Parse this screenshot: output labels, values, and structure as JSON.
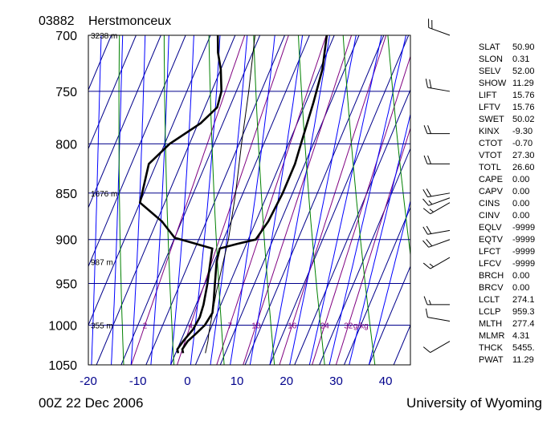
{
  "header": {
    "station_id": "03882",
    "station_name": "Herstmonceux"
  },
  "footer": {
    "time": "00Z 22 Dec 2006",
    "source": "University of Wyoming"
  },
  "chart_data": {
    "type": "line",
    "subtype": "skew-t log-p sounding",
    "x_axis": {
      "range": [
        -20,
        45
      ],
      "ticks": [
        -20,
        -10,
        0,
        10,
        20,
        30,
        40
      ],
      "tick_labels": [
        "-20",
        "-10",
        "0",
        "10",
        "20",
        "30",
        "40"
      ]
    },
    "y_axis": {
      "scale": "log",
      "range": [
        1050,
        700
      ],
      "ticks": [
        700,
        750,
        800,
        850,
        900,
        950,
        1000,
        1050
      ],
      "tick_labels": [
        "700",
        "750",
        "800",
        "850",
        "900",
        "950",
        "1000",
        "1050"
      ]
    },
    "height_labels": [
      {
        "p": 700,
        "text": "3238 m"
      },
      {
        "p": 850,
        "text": "1676 m"
      },
      {
        "p": 925,
        "text": "987 m"
      },
      {
        "p": 1000,
        "text": "355 m"
      }
    ],
    "mixing_ratio_labels": [
      {
        "value": 2,
        "text": "2"
      },
      {
        "value": 4,
        "text": "4"
      },
      {
        "value": 7,
        "text": "7"
      },
      {
        "value": 10,
        "text": "10"
      },
      {
        "value": 16,
        "text": "16"
      },
      {
        "value": 24,
        "text": "24"
      },
      {
        "value": 32,
        "text": "32"
      }
    ],
    "mixing_ratio_unit": "g/kg",
    "mixing_ratio_label_pressure": 1000,
    "series": [
      {
        "role": "temperature",
        "color": "#000000",
        "points": [
          {
            "p": 1035,
            "t": 1.5
          },
          {
            "p": 1030,
            "t": 1.0
          },
          {
            "p": 1020,
            "t": 1.4
          },
          {
            "p": 1010,
            "t": 2.5
          },
          {
            "p": 1000,
            "t": 3.5
          },
          {
            "p": 985,
            "t": 4.0
          },
          {
            "p": 970,
            "t": 3.2
          },
          {
            "p": 950,
            "t": 2.0
          },
          {
            "p": 925,
            "t": 0.5
          },
          {
            "p": 910,
            "t": 0.0
          },
          {
            "p": 905,
            "t": 3.0
          },
          {
            "p": 900,
            "t": 6.5
          },
          {
            "p": 880,
            "t": 7.5
          },
          {
            "p": 850,
            "t": 8.0
          },
          {
            "p": 820,
            "t": 8.0
          },
          {
            "p": 800,
            "t": 7.5
          },
          {
            "p": 760,
            "t": 6.5
          },
          {
            "p": 730,
            "t": 5.5
          },
          {
            "p": 700,
            "t": 3.5
          }
        ]
      },
      {
        "role": "dewpoint",
        "color": "#000000",
        "points": [
          {
            "p": 1035,
            "t": 0.5
          },
          {
            "p": 1030,
            "t": 0.0
          },
          {
            "p": 1020,
            "t": 0.5
          },
          {
            "p": 1005,
            "t": 1.5
          },
          {
            "p": 990,
            "t": 1.8
          },
          {
            "p": 975,
            "t": 1.5
          },
          {
            "p": 950,
            "t": 0.5
          },
          {
            "p": 930,
            "t": -0.5
          },
          {
            "p": 910,
            "t": -1.5
          },
          {
            "p": 905,
            "t": -5.0
          },
          {
            "p": 898,
            "t": -10.0
          },
          {
            "p": 880,
            "t": -14.0
          },
          {
            "p": 860,
            "t": -20.0
          },
          {
            "p": 820,
            "t": -21.5
          },
          {
            "p": 800,
            "t": -19.0
          },
          {
            "p": 780,
            "t": -14.5
          },
          {
            "p": 765,
            "t": -12.5
          },
          {
            "p": 750,
            "t": -13.0
          },
          {
            "p": 730,
            "t": -15.0
          },
          {
            "p": 715,
            "t": -17.0
          },
          {
            "p": 700,
            "t": -18.5
          }
        ]
      },
      {
        "role": "parcel",
        "color": "#000000",
        "points": [
          {
            "p": 1035,
            "t": 6.0
          },
          {
            "p": 1020,
            "t": 5.5
          },
          {
            "p": 1010,
            "t": 5.0
          },
          {
            "p": 960,
            "t": 3.0
          },
          {
            "p": 900,
            "t": 1.0
          },
          {
            "p": 850,
            "t": -1.5
          },
          {
            "p": 800,
            "t": -4.5
          },
          {
            "p": 750,
            "t": -7.5
          },
          {
            "p": 700,
            "t": -11.0
          }
        ]
      }
    ],
    "wind_barbs": [
      {
        "p": 700,
        "dir": 290,
        "kt": 20
      },
      {
        "p": 750,
        "dir": 280,
        "kt": 20
      },
      {
        "p": 790,
        "dir": 270,
        "kt": 20
      },
      {
        "p": 820,
        "dir": 270,
        "kt": 20
      },
      {
        "p": 850,
        "dir": 260,
        "kt": 20
      },
      {
        "p": 855,
        "dir": 250,
        "kt": 15
      },
      {
        "p": 860,
        "dir": 240,
        "kt": 15
      },
      {
        "p": 890,
        "dir": 260,
        "kt": 20
      },
      {
        "p": 900,
        "dir": 250,
        "kt": 20
      },
      {
        "p": 920,
        "dir": 240,
        "kt": 15
      },
      {
        "p": 975,
        "dir": 270,
        "kt": 15
      },
      {
        "p": 995,
        "dir": 280,
        "kt": 10
      },
      {
        "p": 1020,
        "dir": 240,
        "kt": 10
      }
    ],
    "indices": [
      {
        "label": "SLAT",
        "value": "50.90"
      },
      {
        "label": "SLON",
        "value": "0.31"
      },
      {
        "label": "SELV",
        "value": "52.00"
      },
      {
        "label": "SHOW",
        "value": "11.29"
      },
      {
        "label": "LIFT",
        "value": "15.76"
      },
      {
        "label": "LFTV",
        "value": "15.76"
      },
      {
        "label": "SWET",
        "value": "50.02"
      },
      {
        "label": "KINX",
        "value": "-9.30"
      },
      {
        "label": "CTOT",
        "value": "-0.70"
      },
      {
        "label": "VTOT",
        "value": "27.30"
      },
      {
        "label": "TOTL",
        "value": "26.60"
      },
      {
        "label": "CAPE",
        "value": "0.00"
      },
      {
        "label": "CAPV",
        "value": "0.00"
      },
      {
        "label": "CINS",
        "value": "0.00"
      },
      {
        "label": "CINV",
        "value": "0.00"
      },
      {
        "label": "EQLV",
        "value": "-9999"
      },
      {
        "label": "EQTV",
        "value": "-9999"
      },
      {
        "label": "LFCT",
        "value": "-9999"
      },
      {
        "label": "LFCV",
        "value": "-9999"
      },
      {
        "label": "BRCH",
        "value": "0.00"
      },
      {
        "label": "BRCV",
        "value": "0.00"
      },
      {
        "label": "LCLT",
        "value": "274.1"
      },
      {
        "label": "LCLP",
        "value": "959.3"
      },
      {
        "label": "MLTH",
        "value": "277.4"
      },
      {
        "label": "MLMR",
        "value": "4.31"
      },
      {
        "label": "THCK",
        "value": "5455."
      },
      {
        "label": "PWAT",
        "value": "11.29"
      }
    ],
    "colors": {
      "frame": "#000000",
      "isobar": "#00008b",
      "isotherm": "#00008b",
      "dry_adiabat": "#008000",
      "moist_adiabat": "#0000ff",
      "mixing_ratio": "#800080",
      "tick_labels_x": "#00008b"
    }
  }
}
